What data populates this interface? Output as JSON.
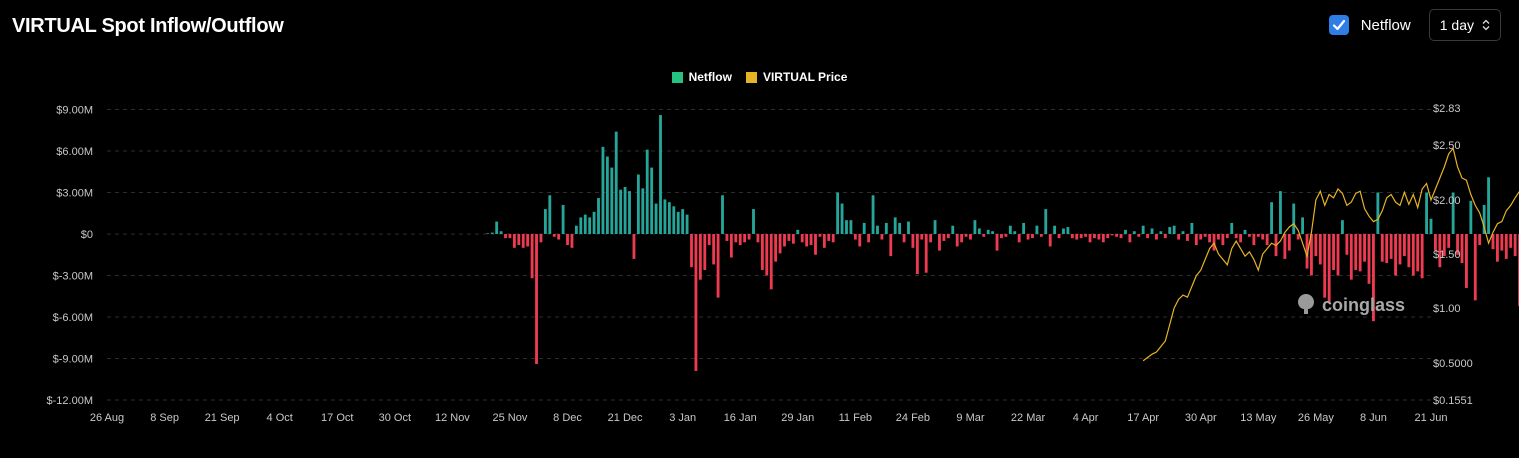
{
  "header": {
    "title": "VIRTUAL Spot Inflow/Outflow",
    "netflow_toggle_label": "Netflow",
    "netflow_checked": true,
    "interval_value": "1 day"
  },
  "watermark": "coinglass",
  "colors": {
    "positive": "#26a69a",
    "negative": "#ef3b52",
    "price": "#e6b325",
    "checkbox": "#2f7ee6"
  },
  "chart_data": {
    "type": "bar",
    "title": "VIRTUAL Spot Inflow/Outflow",
    "legend": [
      "Netflow",
      "VIRTUAL Price"
    ],
    "legend_position": "top-center",
    "grid": true,
    "x_ticks": [
      "26 Aug",
      "8 Sep",
      "21 Sep",
      "4 Oct",
      "17 Oct",
      "30 Oct",
      "12 Nov",
      "25 Nov",
      "8 Dec",
      "21 Dec",
      "3 Jan",
      "16 Jan",
      "29 Jan",
      "11 Feb",
      "24 Feb",
      "9 Mar",
      "22 Mar",
      "4 Apr",
      "17 Apr",
      "30 Apr",
      "13 May",
      "26 May",
      "8 Jun",
      "21 Jun"
    ],
    "y_left_ticks": [
      "$9.00M",
      "$6.00M",
      "$3.00M",
      "$0",
      "$-3.00M",
      "$-6.00M",
      "$-9.00M",
      "$-12.00M"
    ],
    "y_left_values": [
      9,
      6,
      3,
      0,
      -3,
      -6,
      -9,
      -12
    ],
    "y_left_range": [
      -12,
      9.5
    ],
    "y_right_ticks": [
      "$2.83",
      "$2.50",
      "$2.00",
      "$1.50",
      "$1.00",
      "$0.5000",
      "$0.1551"
    ],
    "y_right_values": [
      2.83,
      2.5,
      2.0,
      1.5,
      1.0,
      0.5,
      0.1551
    ],
    "series": [
      {
        "name": "Netflow",
        "unit": "$M",
        "start_date": "2024-11-20",
        "values": [
          0.05,
          0.1,
          0.9,
          0.2,
          -0.3,
          -0.3,
          -1.0,
          -0.8,
          -1.0,
          -0.9,
          -3.2,
          -9.4,
          -0.6,
          1.8,
          2.8,
          -0.2,
          -0.4,
          2.1,
          -0.8,
          -1.0,
          0.6,
          1.2,
          1.4,
          1.2,
          1.6,
          2.6,
          6.3,
          5.6,
          4.8,
          7.4,
          3.2,
          3.4,
          3.1,
          -1.8,
          4.3,
          3.3,
          6.1,
          4.8,
          2.2,
          8.6,
          2.5,
          2.3,
          2.0,
          1.6,
          1.8,
          1.4,
          -2.4,
          -9.9,
          -3.3,
          -2.6,
          -0.8,
          -2.2,
          -4.6,
          2.8,
          -0.5,
          -1.7,
          -0.6,
          -0.8,
          -0.6,
          -0.4,
          1.8,
          -0.6,
          -2.6,
          -3.0,
          -4.0,
          -2.0,
          -1.4,
          -0.9,
          -0.5,
          -0.7,
          0.3,
          -0.6,
          -0.9,
          -0.8,
          -1.5,
          -0.2,
          -1.0,
          -0.5,
          -0.6,
          3.0,
          2.2,
          1.0,
          1.0,
          -0.4,
          -0.9,
          0.8,
          -0.6,
          2.8,
          0.6,
          -0.4,
          0.8,
          -1.6,
          1.2,
          0.8,
          -0.6,
          0.9,
          -1.0,
          -2.9,
          -0.4,
          -2.8,
          -0.6,
          1.0,
          -1.2,
          -0.5,
          -0.3,
          0.6,
          -0.9,
          -0.6,
          -0.2,
          -0.4,
          1.0,
          0.4,
          -0.2,
          0.3,
          0.2,
          -1.2,
          -0.3,
          -0.2,
          0.6,
          0.2,
          -0.6,
          0.8,
          -0.4,
          -0.3,
          0.6,
          -0.2,
          1.8,
          -0.9,
          0.6,
          -0.3,
          0.4,
          0.5,
          -0.3,
          -0.4,
          -0.3,
          -0.2,
          -0.6,
          -0.3,
          -0.4,
          -0.6,
          -0.3,
          -0.1,
          -0.2,
          -0.3,
          0.3,
          -0.6,
          0.2,
          -0.2,
          0.6,
          -0.3,
          0.4,
          -0.4,
          0.2,
          -0.3,
          0.5,
          0.6,
          -0.4,
          0.2,
          -0.5,
          0.8,
          -0.8,
          -0.4,
          -0.2,
          -0.6,
          -1.2,
          -0.4,
          -0.8,
          -0.3,
          0.8,
          -0.3,
          -0.6,
          0.3,
          -0.2,
          -0.8,
          -0.2,
          -0.4,
          -0.8,
          2.3,
          -1.6,
          3.1,
          -1.8,
          -1.2,
          2.2,
          -0.4,
          1.2,
          -2.5,
          -3.0,
          -1.6,
          -2.2,
          -4.6,
          -5.0,
          -2.6,
          -3.0,
          1.0,
          -1.5,
          -3.3,
          -2.6,
          -2.7,
          -2.0,
          -3.6,
          -6.3,
          3.0,
          -2.0,
          -2.1,
          -1.8,
          -3.0,
          -2.2,
          -1.6,
          -2.4,
          -3.0,
          -2.7,
          -3.2,
          3.0,
          1.1,
          -1.2,
          -2.4,
          -1.6,
          -1.0,
          3.0,
          -1.5,
          -2.1,
          -3.9,
          2.4,
          -4.8,
          -0.8,
          2.1,
          4.1,
          -1.1,
          -2.0,
          -1.2,
          -1.8,
          -1.0,
          -1.6,
          -5.2,
          -6.8,
          -1.0,
          -2.4,
          -3.0,
          -1.0,
          0.9,
          -3.1,
          -2.4,
          -1.2,
          -0.9,
          -2.7,
          -2.4,
          -1.9,
          1.0,
          5.4,
          0.9,
          -3.0,
          -6.5,
          1.3,
          2.1,
          0.8,
          -2.5,
          0.4,
          -0.2,
          0.6,
          -0.4,
          1.1,
          -0.6,
          -1.4,
          1.9,
          -2.6,
          -2.7,
          0.7
        ]
      },
      {
        "name": "VIRTUAL Price",
        "unit": "$",
        "start_date": "2025-04-17",
        "values": [
          0.52,
          0.55,
          0.58,
          0.6,
          0.65,
          0.7,
          0.85,
          1.0,
          1.08,
          1.12,
          1.1,
          1.2,
          1.3,
          1.35,
          1.45,
          1.55,
          1.6,
          1.5,
          1.45,
          1.4,
          1.55,
          1.62,
          1.55,
          1.48,
          1.52,
          1.45,
          1.35,
          1.5,
          1.55,
          1.6,
          1.58,
          1.62,
          1.7,
          1.75,
          1.78,
          1.72,
          1.6,
          1.48,
          1.7,
          2.0,
          2.08,
          1.95,
          2.05,
          2.02,
          2.1,
          2.06,
          1.95,
          1.98,
          2.06,
          2.08,
          1.92,
          1.85,
          1.8,
          1.82,
          1.9,
          2.02,
          2.05,
          1.98,
          1.95,
          2.07,
          1.96,
          2.05,
          1.93,
          2.1,
          2.15,
          2.0,
          2.1,
          2.2,
          2.3,
          2.42,
          2.47,
          2.3,
          2.2,
          2.18,
          2.05,
          1.95,
          1.88,
          1.75,
          1.6,
          1.7,
          1.78,
          1.8,
          1.9,
          1.95,
          2.02,
          2.08,
          2.1,
          2.12,
          2.02,
          1.95,
          1.85,
          1.78,
          1.75,
          1.8,
          1.72,
          1.68,
          1.6,
          1.62,
          1.65,
          1.58,
          1.55,
          1.53,
          1.52,
          1.5,
          1.48,
          1.5,
          1.49,
          1.51,
          1.55,
          1.52,
          1.5
        ]
      }
    ]
  }
}
